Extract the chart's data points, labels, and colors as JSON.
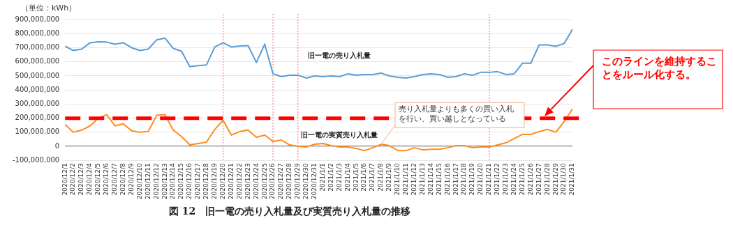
{
  "chart_data": {
    "type": "line",
    "title": "図 12　旧一電の売り入札量及び実質売り入札量の推移",
    "ylabel": "（単位：kWh）",
    "categories": [
      "2020/12/1",
      "2020/12/2",
      "2020/12/3",
      "2020/12/4",
      "2020/12/5",
      "2020/12/6",
      "2020/12/7",
      "2020/12/8",
      "2020/12/9",
      "2020/12/10",
      "2020/12/11",
      "2020/12/12",
      "2020/12/13",
      "2020/12/14",
      "2020/12/15",
      "2020/12/16",
      "2020/12/17",
      "2020/12/18",
      "2020/12/19",
      "2020/12/20",
      "2020/12/21",
      "2020/12/22",
      "2020/12/23",
      "2020/12/24",
      "2020/12/25",
      "2020/12/26",
      "2020/12/27",
      "2020/12/28",
      "2020/12/29",
      "2020/12/30",
      "2020/12/31",
      "2021/1/1",
      "2021/1/2",
      "2021/1/3",
      "2021/1/4",
      "2021/1/5",
      "2021/1/6",
      "2021/1/7",
      "2021/1/8",
      "2021/1/9",
      "2021/1/10",
      "2021/1/11",
      "2021/1/12",
      "2021/1/13",
      "2021/1/14",
      "2021/1/15",
      "2021/1/16",
      "2021/1/17",
      "2021/1/18",
      "2021/1/19",
      "2021/1/20",
      "2021/1/21",
      "2021/1/22",
      "2021/1/23",
      "2021/1/24",
      "2021/1/25",
      "2021/1/26",
      "2021/1/27",
      "2021/1/28",
      "2021/1/29",
      "2021/1/30",
      "2021/1/31"
    ],
    "series": [
      {
        "name": "旧一電の売り入札量",
        "color": "#5b9bd5",
        "values": [
          710000000,
          680000000,
          690000000,
          735000000,
          742000000,
          740000000,
          725000000,
          735000000,
          700000000,
          680000000,
          690000000,
          755000000,
          768000000,
          695000000,
          675000000,
          565000000,
          572000000,
          578000000,
          705000000,
          735000000,
          705000000,
          712000000,
          715000000,
          595000000,
          725000000,
          515000000,
          495000000,
          505000000,
          505000000,
          485000000,
          500000000,
          495000000,
          500000000,
          495000000,
          515000000,
          505000000,
          510000000,
          510000000,
          520000000,
          500000000,
          490000000,
          485000000,
          495000000,
          510000000,
          515000000,
          510000000,
          490000000,
          495000000,
          515000000,
          505000000,
          525000000,
          525000000,
          530000000,
          510000000,
          515000000,
          590000000,
          590000000,
          720000000,
          720000000,
          710000000,
          730000000,
          830000000
        ]
      },
      {
        "name": "旧一電の実質売り入札量",
        "color": "#ff8c1a",
        "values": [
          155000000,
          100000000,
          115000000,
          145000000,
          200000000,
          225000000,
          145000000,
          160000000,
          110000000,
          100000000,
          105000000,
          220000000,
          225000000,
          115000000,
          70000000,
          10000000,
          20000000,
          30000000,
          120000000,
          185000000,
          80000000,
          105000000,
          115000000,
          65000000,
          80000000,
          35000000,
          45000000,
          10000000,
          0,
          -5000000,
          15000000,
          20000000,
          5000000,
          -5000000,
          -5000000,
          -15000000,
          -30000000,
          -10000000,
          15000000,
          5000000,
          -30000000,
          -30000000,
          -10000000,
          -25000000,
          -20000000,
          -20000000,
          -10000000,
          5000000,
          5000000,
          -10000000,
          -5000000,
          -5000000,
          10000000,
          25000000,
          55000000,
          85000000,
          85000000,
          105000000,
          120000000,
          100000000,
          175000000,
          265000000
        ]
      }
    ],
    "ylim": [
      -100000000,
      900000000
    ],
    "yticks": [
      {
        "value": -100000000,
        "label": "-100,000,000"
      },
      {
        "value": 0,
        "label": "0"
      },
      {
        "value": 100000000,
        "label": "100,000,000"
      },
      {
        "value": 200000000,
        "label": "200,000,000"
      },
      {
        "value": 300000000,
        "label": "300,000,000"
      },
      {
        "value": 400000000,
        "label": "400,000,000"
      },
      {
        "value": 500000000,
        "label": "500,000,000"
      },
      {
        "value": 600000000,
        "label": "600,000,000"
      },
      {
        "value": 700000000,
        "label": "700,000,000"
      },
      {
        "value": 800000000,
        "label": "800,000,000"
      },
      {
        "value": 900000000,
        "label": "900,000,000"
      }
    ],
    "grid": "y",
    "legend": false,
    "marker": "none",
    "line_style": "solid",
    "ref_lines": [
      {
        "axis": "y",
        "value": 200000000,
        "color": "#ff0000",
        "line_style": "dashed"
      },
      {
        "axis": "x",
        "value": "2020/12/20",
        "color": "#ff7f7f",
        "line_style": "dotted"
      },
      {
        "axis": "x",
        "value": "2020/12/26",
        "color": "#ff7f7f",
        "line_style": "dotted"
      },
      {
        "axis": "x",
        "value": "2020/12/29",
        "color": "#ff7f7f",
        "line_style": "dotted"
      },
      {
        "axis": "x",
        "value": "2021/1/21",
        "color": "#ff7f7f",
        "line_style": "dotted"
      }
    ],
    "annotations": [
      {
        "text": "売り入札量よりも多くの買い入札を行い、買い越しとなっている",
        "x": "2021/1/8",
        "y": 15000000
      },
      "このラインを維持することをルール化する。"
    ]
  }
}
